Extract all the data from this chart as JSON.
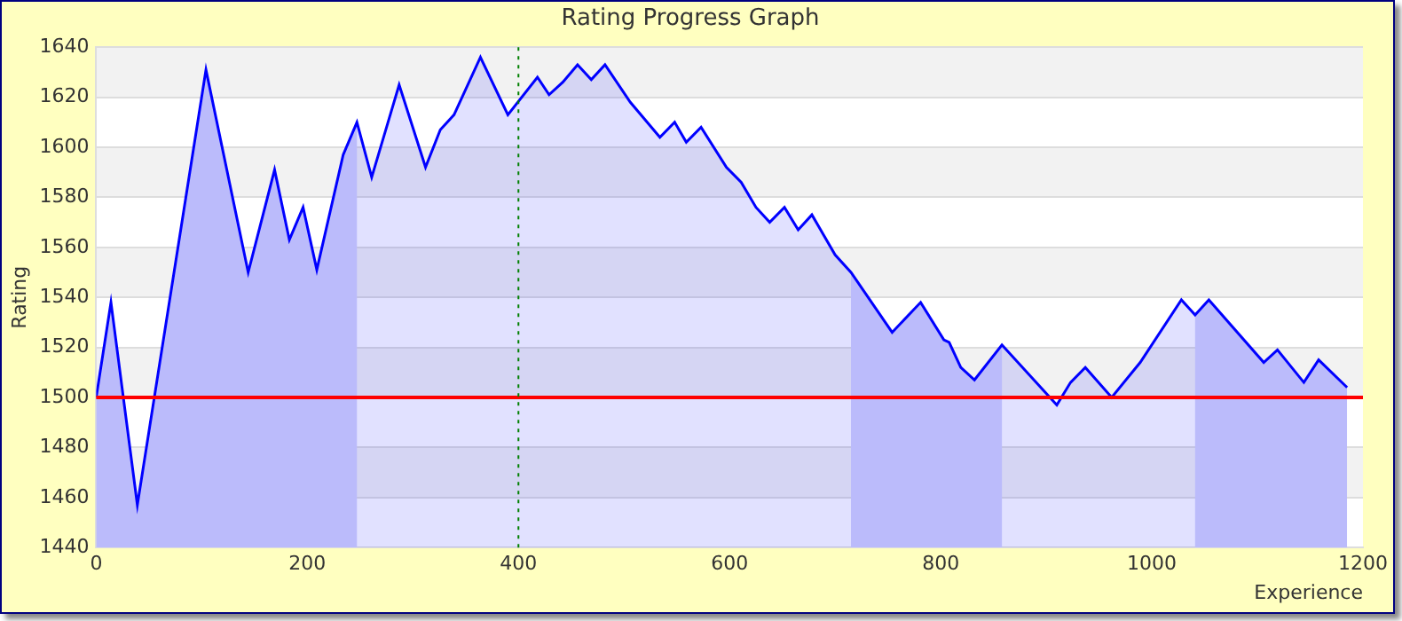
{
  "chart_data": {
    "type": "area",
    "title": "Rating Progress Graph",
    "xlabel": "Experience",
    "ylabel": "Rating",
    "x": [
      0,
      14,
      39,
      104,
      144,
      169,
      183,
      196,
      209,
      234,
      247,
      261,
      287,
      312,
      326,
      339,
      364,
      390,
      418,
      429,
      442,
      456,
      469,
      482,
      506,
      534,
      548,
      559,
      573,
      597,
      611,
      625,
      638,
      652,
      665,
      678,
      700,
      715,
      754,
      781,
      803,
      808,
      819,
      832,
      858,
      910,
      923,
      937,
      962,
      989,
      1028,
      1041,
      1054,
      1106,
      1119,
      1144,
      1158,
      1185
    ],
    "series": [
      {
        "color": "#0000ff",
        "values": [
          1500,
          1538,
          1457,
          1631,
          1550,
          1591,
          1563,
          1576,
          1551,
          1597,
          1610,
          1588,
          1625,
          1592,
          1607,
          1613,
          1636,
          1613,
          1628,
          1621,
          1626,
          1633,
          1627,
          1633,
          1618,
          1604,
          1610,
          1602,
          1608,
          1592,
          1586,
          1576,
          1570,
          1576,
          1567,
          1573,
          1557,
          1550,
          1526,
          1538,
          1523,
          1522,
          1512,
          1507,
          1521,
          1497,
          1506,
          1512,
          1500,
          1514,
          1539,
          1533,
          1539,
          1514,
          1519,
          1506,
          1515,
          1504
        ]
      }
    ],
    "xlim": [
      0,
      1200
    ],
    "xticks": [
      0,
      200,
      400,
      600,
      800,
      1000,
      1200
    ],
    "ylim": [
      1440,
      1640
    ],
    "yticks": [
      1440,
      1460,
      1480,
      1500,
      1520,
      1540,
      1560,
      1580,
      1600,
      1620,
      1640
    ],
    "grid": "y",
    "legend": false,
    "marker": "none",
    "line_style": "solid",
    "ref_lines": [
      {
        "axis": "y",
        "value": 1500,
        "color": "#ff0000",
        "line_style": "solid"
      },
      {
        "axis": "x",
        "value": 400,
        "color": "#008000",
        "line_style": "dotted"
      }
    ],
    "bands": [
      {
        "axis": "x",
        "from": 0,
        "to": 247,
        "color": "#d4d4fb"
      },
      {
        "axis": "x",
        "from": 715,
        "to": 858,
        "color": "#d4d4fb"
      },
      {
        "axis": "x",
        "from": 1041,
        "to": 1185,
        "color": "#d4d4fb"
      }
    ]
  }
}
